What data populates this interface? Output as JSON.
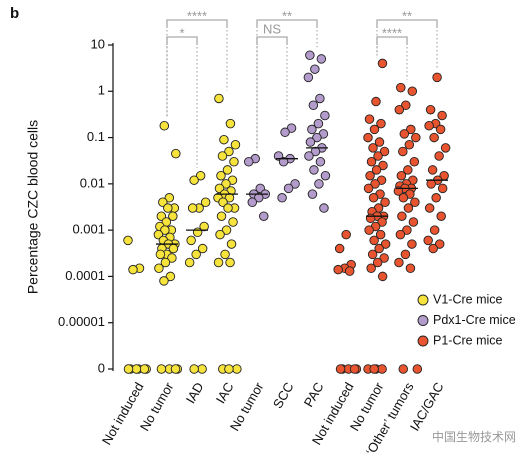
{
  "panel_label": "b",
  "watermark": "中国生物技术网",
  "chart_data": {
    "type": "strip",
    "y_label": "Percentage CZC blood cells",
    "log_scale": true,
    "ylim": [
      0,
      10
    ],
    "yticks": [
      10,
      1,
      0.1,
      0.01,
      0.001,
      0.0001,
      1e-05,
      0
    ],
    "categories": [
      "Not induced",
      "No tumor",
      "IAD",
      "IAC",
      "No tumor",
      "SCC",
      "PAC",
      "Not induced",
      "No tumor",
      "‘Other’ tumors",
      "IAC/GAC"
    ],
    "legend_position": "lower right",
    "series": [
      {
        "name": "V1-Cre mice",
        "color": "#f6e33c",
        "values": [
          [
            0.0006,
            0.00015,
            0.00014,
            0,
            0,
            0,
            0,
            0,
            0
          ],
          [
            0.18,
            0.045,
            0.005,
            0.004,
            0.003,
            0.003,
            0.002,
            0.002,
            0.0015,
            0.0012,
            0.001,
            0.001,
            0.0008,
            0.0007,
            0.0006,
            0.0005,
            0.0005,
            0.0004,
            0.0004,
            0.0003,
            0.0003,
            0.00025,
            0.0002,
            0.00015,
            0.0001,
            8e-05,
            0,
            0,
            0,
            0
          ],
          [
            0.015,
            0.012,
            0.004,
            0.003,
            0.003,
            0.0012,
            0.0009,
            0.0006,
            0.0004,
            0.0003,
            0.0002,
            0,
            0
          ],
          [
            0.7,
            0.2,
            0.09,
            0.07,
            0.05,
            0.04,
            0.03,
            0.02,
            0.015,
            0.012,
            0.01,
            0.008,
            0.007,
            0.006,
            0.005,
            0.005,
            0.004,
            0.003,
            0.003,
            0.002,
            0.0015,
            0.001,
            0.0008,
            0.0005,
            0.0003,
            0.0002,
            0.0002,
            0,
            0,
            0
          ],
          null,
          null,
          null,
          null,
          null,
          null,
          null
        ],
        "medians": [
          null,
          0.0005,
          0.001,
          0.006,
          null,
          null,
          null,
          null,
          null,
          null,
          null
        ]
      },
      {
        "name": "Pdx1-Cre mice",
        "color": "#b39bcc",
        "values": [
          null,
          null,
          null,
          null,
          [
            0.035,
            0.03,
            0.008,
            0.006,
            0.006,
            0.005,
            0.004,
            0.002
          ],
          [
            0.16,
            0.13,
            0.04,
            0.035,
            0.03,
            0.01,
            0.008,
            0.005
          ],
          [
            6,
            5,
            3,
            2,
            0.7,
            0.5,
            0.3,
            0.2,
            0.15,
            0.12,
            0.1,
            0.08,
            0.06,
            0.05,
            0.04,
            0.03,
            0.02,
            0.015,
            0.01,
            0.006,
            0.003
          ],
          null,
          null,
          null,
          null
        ],
        "medians": [
          null,
          null,
          null,
          null,
          0.006,
          0.035,
          0.06,
          null,
          null,
          null,
          null
        ]
      },
      {
        "name": "P1-Cre mice",
        "color": "#e8542f",
        "values": [
          null,
          null,
          null,
          null,
          null,
          null,
          null,
          [
            0.0008,
            0.0004,
            0.00018,
            0.00015,
            0.00014,
            0.00013,
            0,
            0,
            0,
            0,
            0
          ],
          [
            4,
            0.6,
            0.25,
            0.2,
            0.15,
            0.1,
            0.08,
            0.06,
            0.05,
            0.04,
            0.03,
            0.025,
            0.02,
            0.015,
            0.012,
            0.01,
            0.008,
            0.006,
            0.005,
            0.004,
            0.003,
            0.0025,
            0.002,
            0.002,
            0.0018,
            0.0015,
            0.0012,
            0.001,
            0.0008,
            0.0006,
            0.0005,
            0.0004,
            0.0003,
            0.00025,
            0.0002,
            0.00015,
            0.0001,
            0,
            0,
            0,
            0
          ],
          [
            1.2,
            1,
            0.5,
            0.4,
            0.15,
            0.12,
            0.1,
            0.07,
            0.05,
            0.03,
            0.02,
            0.015,
            0.012,
            0.01,
            0.009,
            0.008,
            0.008,
            0.007,
            0.006,
            0.005,
            0.004,
            0.003,
            0.002,
            0.0015,
            0.001,
            0.0008,
            0.0005,
            0.0003,
            0.0002,
            0.00015,
            0,
            0
          ],
          [
            2,
            0.4,
            0.3,
            0.2,
            0.18,
            0.15,
            0.1,
            0.06,
            0.04,
            0.02,
            0.015,
            0.012,
            0.01,
            0.008,
            0.005,
            0.003,
            0.002,
            0.001,
            0.0006,
            0.0005,
            0.0004
          ]
        ],
        "medians": [
          null,
          null,
          null,
          null,
          null,
          null,
          null,
          null,
          0.002,
          0.008,
          0.012
        ]
      }
    ],
    "annotations": [
      {
        "label": "****",
        "categories": [
          1,
          3
        ]
      },
      {
        "label": "*",
        "categories": [
          1,
          2
        ]
      },
      {
        "label": "**",
        "categories": [
          4,
          6
        ]
      },
      {
        "label": "NS",
        "categories": [
          4,
          5
        ]
      },
      {
        "label": "**",
        "categories": [
          8,
          10
        ]
      },
      {
        "label": "****",
        "categories": [
          8,
          9
        ]
      }
    ]
  }
}
